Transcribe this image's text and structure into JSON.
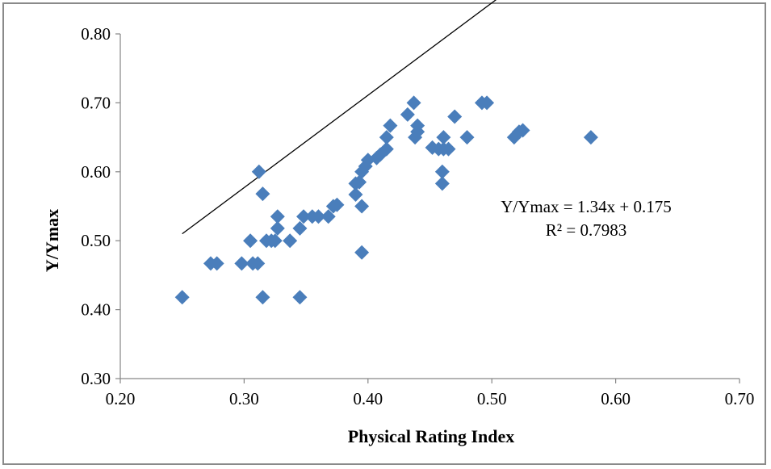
{
  "chart_data": {
    "type": "scatter",
    "title": "",
    "xlabel": "Physical Rating Index",
    "ylabel": "Y/Ymax",
    "xlim": [
      0.2,
      0.7
    ],
    "ylim": [
      0.3,
      0.8
    ],
    "x_ticks": [
      "0.20",
      "0.30",
      "0.40",
      "0.50",
      "0.60",
      "0.70"
    ],
    "y_ticks": [
      "0.30",
      "0.40",
      "0.50",
      "0.60",
      "0.70",
      "0.80"
    ],
    "grid": false,
    "legend": "none",
    "series": [
      {
        "color": "#4a7ebb",
        "marker": "diamond",
        "points": [
          [
            0.25,
            0.418
          ],
          [
            0.273,
            0.467
          ],
          [
            0.278,
            0.467
          ],
          [
            0.298,
            0.467
          ],
          [
            0.305,
            0.5
          ],
          [
            0.307,
            0.467
          ],
          [
            0.311,
            0.467
          ],
          [
            0.312,
            0.6
          ],
          [
            0.315,
            0.418
          ],
          [
            0.315,
            0.568
          ],
          [
            0.318,
            0.5
          ],
          [
            0.322,
            0.5
          ],
          [
            0.325,
            0.5
          ],
          [
            0.327,
            0.518
          ],
          [
            0.327,
            0.535
          ],
          [
            0.337,
            0.5
          ],
          [
            0.345,
            0.418
          ],
          [
            0.345,
            0.518
          ],
          [
            0.348,
            0.535
          ],
          [
            0.355,
            0.535
          ],
          [
            0.36,
            0.535
          ],
          [
            0.368,
            0.535
          ],
          [
            0.372,
            0.55
          ],
          [
            0.375,
            0.552
          ],
          [
            0.39,
            0.567
          ],
          [
            0.39,
            0.583
          ],
          [
            0.393,
            0.585
          ],
          [
            0.395,
            0.483
          ],
          [
            0.395,
            0.55
          ],
          [
            0.395,
            0.6
          ],
          [
            0.398,
            0.608
          ],
          [
            0.4,
            0.617
          ],
          [
            0.407,
            0.62
          ],
          [
            0.41,
            0.625
          ],
          [
            0.415,
            0.633
          ],
          [
            0.415,
            0.65
          ],
          [
            0.418,
            0.667
          ],
          [
            0.432,
            0.683
          ],
          [
            0.437,
            0.7
          ],
          [
            0.438,
            0.65
          ],
          [
            0.44,
            0.667
          ],
          [
            0.44,
            0.658
          ],
          [
            0.452,
            0.635
          ],
          [
            0.457,
            0.633
          ],
          [
            0.46,
            0.583
          ],
          [
            0.46,
            0.6
          ],
          [
            0.461,
            0.65
          ],
          [
            0.461,
            0.633
          ],
          [
            0.465,
            0.633
          ],
          [
            0.47,
            0.68
          ],
          [
            0.48,
            0.65
          ],
          [
            0.492,
            0.7
          ],
          [
            0.496,
            0.7
          ],
          [
            0.518,
            0.65
          ],
          [
            0.522,
            0.658
          ],
          [
            0.525,
            0.66
          ],
          [
            0.58,
            0.65
          ]
        ]
      }
    ],
    "trendline": {
      "slope": 1.34,
      "intercept": 0.175,
      "x_range": [
        0.25,
        0.58
      ],
      "color": "#000000"
    },
    "annotations": {
      "equation": "Y/Ymax = 1.34x + 0.175",
      "r_squared": "R² = 0.7983"
    }
  }
}
